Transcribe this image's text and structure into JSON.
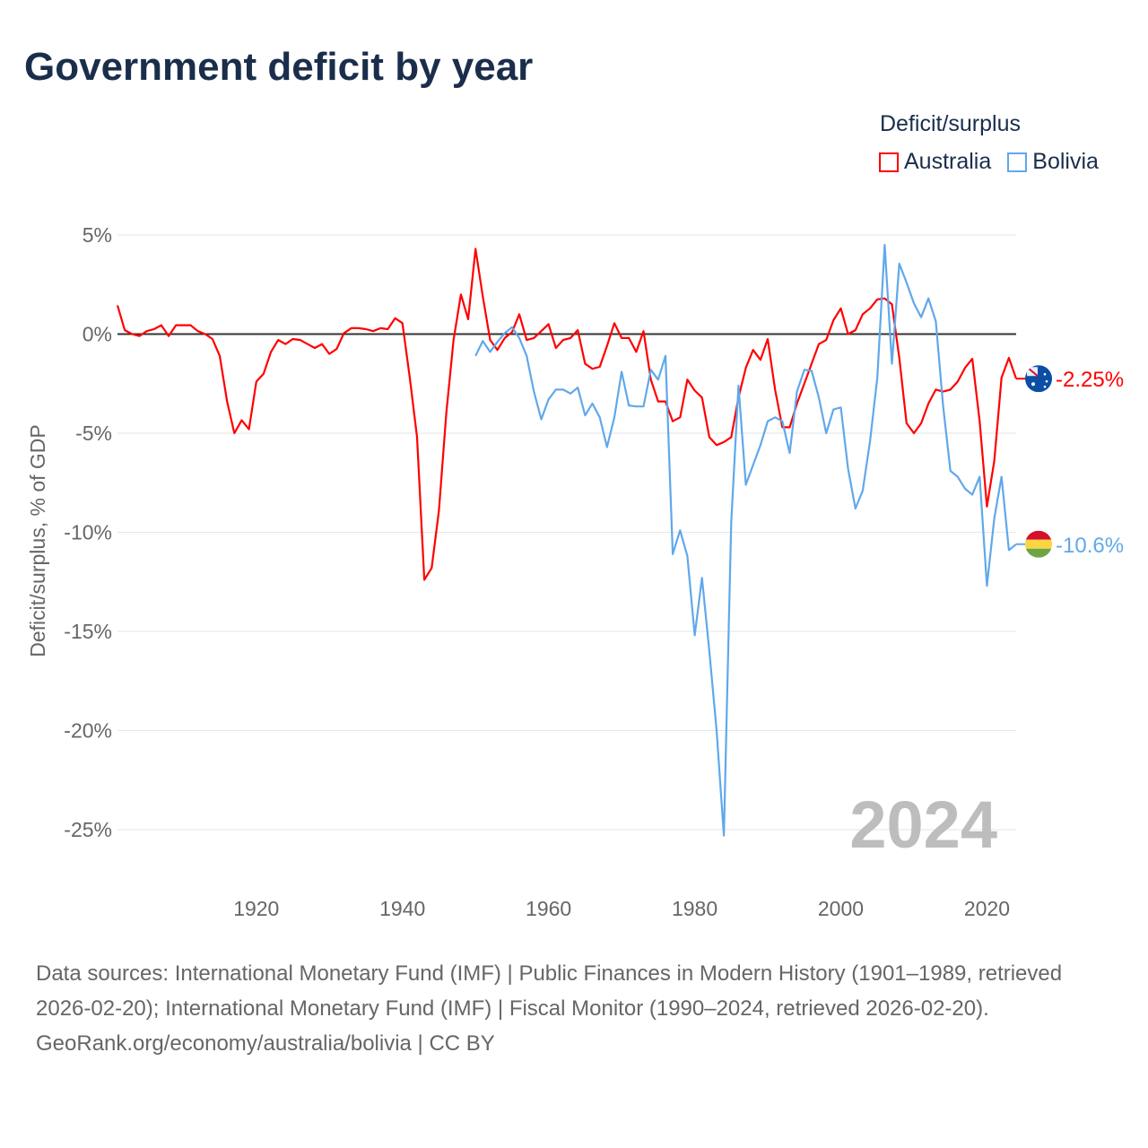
{
  "title": "Government deficit by year",
  "legend": {
    "title": "Deficit/surplus",
    "items": [
      {
        "name": "Australia",
        "color": "#ff0000"
      },
      {
        "name": "Bolivia",
        "color": "#60a8eb"
      }
    ]
  },
  "footer": {
    "sources": "Data sources: International Monetary Fund (IMF) | Public Finances in Modern History (1901–1989, retrieved 2026-02-20); International Monetary Fund (IMF) | Fiscal Monitor (1990–2024, retrieved 2026-02-20).",
    "credit": "GeoRank.org/economy/australia/bolivia | CC BY"
  },
  "chart_data": {
    "type": "line",
    "title": "Government deficit by year",
    "ylabel": "Deficit/surplus, % of GDP",
    "xlabel": "",
    "xlim": [
      1901,
      2024
    ],
    "ylim": [
      -25,
      5
    ],
    "yticks": [
      5,
      0,
      -5,
      -10,
      -15,
      -20,
      -25
    ],
    "ytick_labels": [
      "5%",
      "0%",
      "-5%",
      "-10%",
      "-15%",
      "-20%",
      "-25%"
    ],
    "xticks": [
      1920,
      1940,
      1960,
      1980,
      2000,
      2020
    ],
    "xtick_labels": [
      "1920",
      "1940",
      "1960",
      "1980",
      "2000",
      "2020"
    ],
    "year_label": "2024",
    "grid": true,
    "legend_position": "top-right",
    "series": [
      {
        "name": "Australia",
        "color": "#ff0000",
        "start_year": 1901,
        "end_label": "-2.25%",
        "values": [
          1.45,
          0.2,
          0.0,
          -0.1,
          0.15,
          0.25,
          0.45,
          -0.1,
          0.45,
          0.45,
          0.45,
          0.15,
          0.0,
          -0.25,
          -1.1,
          -3.4,
          -5.0,
          -4.35,
          -4.8,
          -2.4,
          -2.0,
          -0.9,
          -0.3,
          -0.5,
          -0.25,
          -0.3,
          -0.5,
          -0.7,
          -0.5,
          -1.0,
          -0.75,
          0.05,
          0.3,
          0.3,
          0.25,
          0.15,
          0.3,
          0.25,
          0.8,
          0.55,
          -2.2,
          -5.2,
          -12.4,
          -11.8,
          -8.9,
          -4.0,
          -0.3,
          2.0,
          0.75,
          4.3,
          1.9,
          -0.3,
          -0.8,
          -0.2,
          0.1,
          1.0,
          -0.3,
          -0.2,
          0.15,
          0.5,
          -0.7,
          -0.3,
          -0.2,
          0.2,
          -1.5,
          -1.75,
          -1.65,
          -0.6,
          0.55,
          -0.2,
          -0.2,
          -0.9,
          0.15,
          -2.3,
          -3.4,
          -3.4,
          -4.4,
          -4.2,
          -2.3,
          -2.85,
          -3.2,
          -5.2,
          -5.6,
          -5.45,
          -5.2,
          -3.2,
          -1.7,
          -0.8,
          -1.3,
          -0.25,
          -2.8,
          -4.7,
          -4.7,
          -3.5,
          -2.5,
          -1.5,
          -0.5,
          -0.3,
          0.7,
          1.3,
          0.0,
          0.2,
          1.0,
          1.3,
          1.75,
          1.8,
          1.5,
          -1.2,
          -4.5,
          -5.0,
          -4.5,
          -3.5,
          -2.8,
          -2.9,
          -2.8,
          -2.4,
          -1.7,
          -1.25,
          -4.4,
          -8.7,
          -6.4,
          -2.2,
          -1.2,
          -2.25
        ]
      },
      {
        "name": "Bolivia",
        "color": "#60a8eb",
        "start_year": 1950,
        "end_label": "-10.6%",
        "values": [
          -1.1,
          -0.35,
          -0.9,
          -0.4,
          0.05,
          0.35,
          -0.2,
          -1.1,
          -2.9,
          -4.3,
          -3.3,
          -2.8,
          -2.8,
          -3.0,
          -2.7,
          -4.1,
          -3.5,
          -4.2,
          -5.7,
          -4.2,
          -1.9,
          -3.6,
          -3.65,
          -3.65,
          -1.8,
          -2.3,
          -1.1,
          -11.1,
          -9.9,
          -11.2,
          -15.2,
          -12.3,
          -16.0,
          -20.0,
          -25.3,
          -9.5,
          -2.6,
          -7.6,
          -6.6,
          -5.6,
          -4.4,
          -4.2,
          -4.4,
          -6.0,
          -2.9,
          -1.8,
          -1.85,
          -3.2,
          -5.0,
          -3.8,
          -3.7,
          -6.8,
          -8.8,
          -7.9,
          -5.4,
          -2.2,
          4.5,
          -1.5,
          3.55,
          2.6,
          1.55,
          0.85,
          1.8,
          0.65,
          -3.6,
          -6.9,
          -7.2,
          -7.8,
          -8.1,
          -7.2,
          -12.7,
          -9.3,
          -7.2,
          -10.9,
          -10.6
        ]
      }
    ]
  }
}
